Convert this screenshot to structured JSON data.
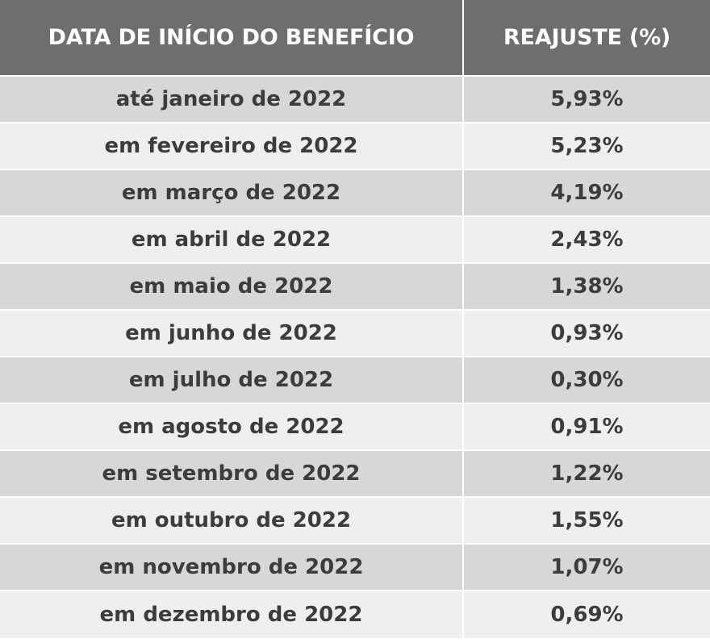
{
  "table": {
    "headers": [
      "DATA DE INÍCIO DO BENEFÍCIO",
      "REAJUSTE (%)"
    ],
    "rows": [
      {
        "date": "até janeiro de 2022",
        "adjustment": "5,93%"
      },
      {
        "date": "em fevereiro de 2022",
        "adjustment": "5,23%"
      },
      {
        "date": "em março de 2022",
        "adjustment": "4,19%"
      },
      {
        "date": "em abril de 2022",
        "adjustment": "2,43%"
      },
      {
        "date": "em maio de 2022",
        "adjustment": "1,38%"
      },
      {
        "date": "em junho de 2022",
        "adjustment": "0,93%"
      },
      {
        "date": "em julho de 2022",
        "adjustment": "0,30%"
      },
      {
        "date": "em agosto de 2022",
        "adjustment": "0,91%"
      },
      {
        "date": "em setembro de 2022",
        "adjustment": "1,22%"
      },
      {
        "date": "em outubro de 2022",
        "adjustment": "1,55%"
      },
      {
        "date": "em novembro de 2022",
        "adjustment": "1,07%"
      },
      {
        "date": "em dezembro de 2022",
        "adjustment": "0,69%"
      }
    ]
  },
  "colors": {
    "header_bg": "#6e6e6e",
    "row_dark": "#d7d7d7",
    "row_light": "#efefef",
    "text": "#3c3c3c"
  }
}
